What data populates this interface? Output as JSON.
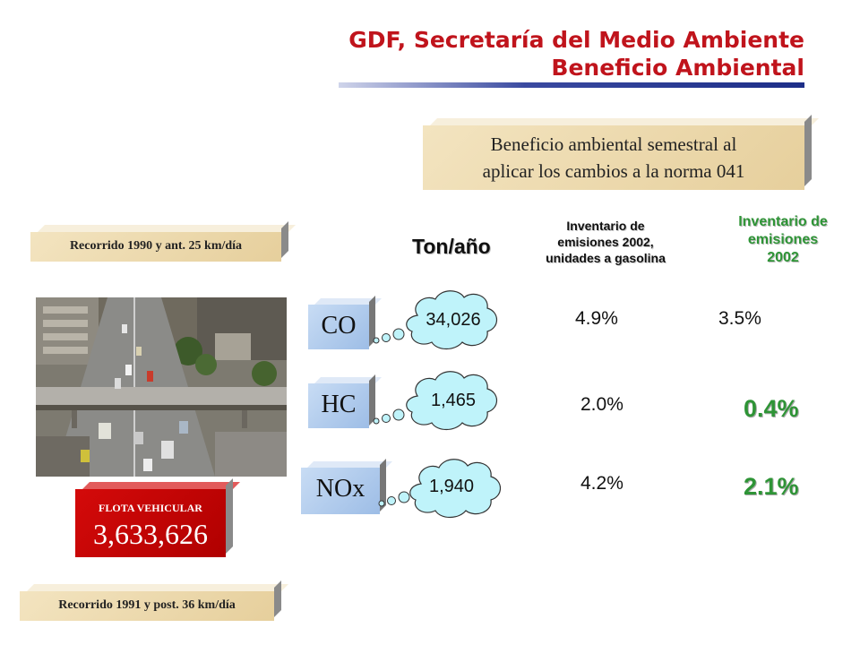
{
  "header": {
    "line1": "GDF, Secretaría del Medio Ambiente",
    "line2": "Beneficio Ambiental"
  },
  "benefit_box": {
    "line1": "Beneficio ambiental semestral al",
    "line2": "aplicar los cambios a la norma 041"
  },
  "recorrido_top": "Recorrido 1990 y ant. 25 km/día",
  "recorrido_bottom": "Recorrido 1991 y post. 36 km/día",
  "flota": {
    "title": "FLOTA VEHICULAR",
    "value": "3,633,626"
  },
  "columns": {
    "ton": "Ton/año",
    "inv_gasolina": [
      "Inventario de",
      "emisiones 2002,",
      "unidades a gasolina"
    ],
    "inv_2002": [
      "Inventario de",
      "emisiones",
      "2002"
    ]
  },
  "rows": [
    {
      "gas": "CO",
      "ton": "34,026",
      "pct_gasolina": "4.9%",
      "pct_2002": "3.5%"
    },
    {
      "gas": "HC",
      "ton": "1,465",
      "pct_gasolina": "2.0%",
      "pct_2002": "0.4%"
    },
    {
      "gas": "NOx",
      "ton": "1,940",
      "pct_gasolina": "4.2%",
      "pct_2002": "2.1%"
    }
  ],
  "colors": {
    "header_red": "#c0141c",
    "green": "#2e9436",
    "tan_box": "#efdcb2",
    "flota_red": "#c40000",
    "cloud_fill": "#bff3fa",
    "gas_box": "#a9c6ea"
  },
  "icons": {
    "photo": "street-traffic-photo",
    "cloud": "thought-cloud"
  }
}
